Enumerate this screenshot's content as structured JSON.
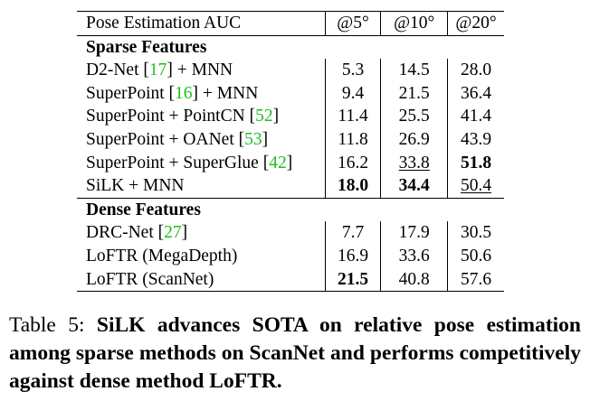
{
  "table": {
    "header": {
      "label": "Pose Estimation AUC",
      "cols": [
        "@5°",
        "@10°",
        "@20°"
      ]
    },
    "sections": [
      {
        "title": "Sparse Features",
        "rows": [
          {
            "pre": "D2-Net [",
            "cite": "17",
            "post": "] + MNN",
            "v": [
              "5.3",
              "14.5",
              "28.0"
            ]
          },
          {
            "pre": "SuperPoint [",
            "cite": "16",
            "post": "] + MNN",
            "v": [
              "9.4",
              "21.5",
              "36.4"
            ]
          },
          {
            "pre": "SuperPoint + PointCN [",
            "cite": "52",
            "post": "]",
            "v": [
              "11.4",
              "25.5",
              "41.4"
            ]
          },
          {
            "pre": "SuperPoint + OANet [",
            "cite": "53",
            "post": "]",
            "v": [
              "11.8",
              "26.9",
              "43.9"
            ]
          },
          {
            "pre": "SuperPoint + SuperGlue [",
            "cite": "42",
            "post": "]",
            "v": [
              "16.2",
              "33.8",
              "51.8"
            ]
          },
          {
            "pre": "SiLK + MNN",
            "cite": "",
            "post": "",
            "v": [
              "18.0",
              "34.4",
              "50.4"
            ]
          }
        ]
      },
      {
        "title": "Dense Features",
        "rows": [
          {
            "pre": "DRC-Net [",
            "cite": "27",
            "post": "]",
            "v": [
              "7.7",
              "17.9",
              "30.5"
            ]
          },
          {
            "pre": "LoFTR (MegaDepth)",
            "cite": "",
            "post": "",
            "v": [
              "16.9",
              "33.6",
              "50.6"
            ]
          },
          {
            "pre": "LoFTR (ScanNet)",
            "cite": "",
            "post": "",
            "v": [
              "21.5",
              "40.8",
              "57.6"
            ]
          }
        ]
      }
    ]
  },
  "caption": {
    "label": "Table 5: ",
    "text": "SiLK advances SOTA on relative pose estimation among sparse methods on ScanNet and performs competitively against dense method LoFTR."
  },
  "colors": {
    "citation": "#1fbf1f",
    "text": "#000000"
  }
}
